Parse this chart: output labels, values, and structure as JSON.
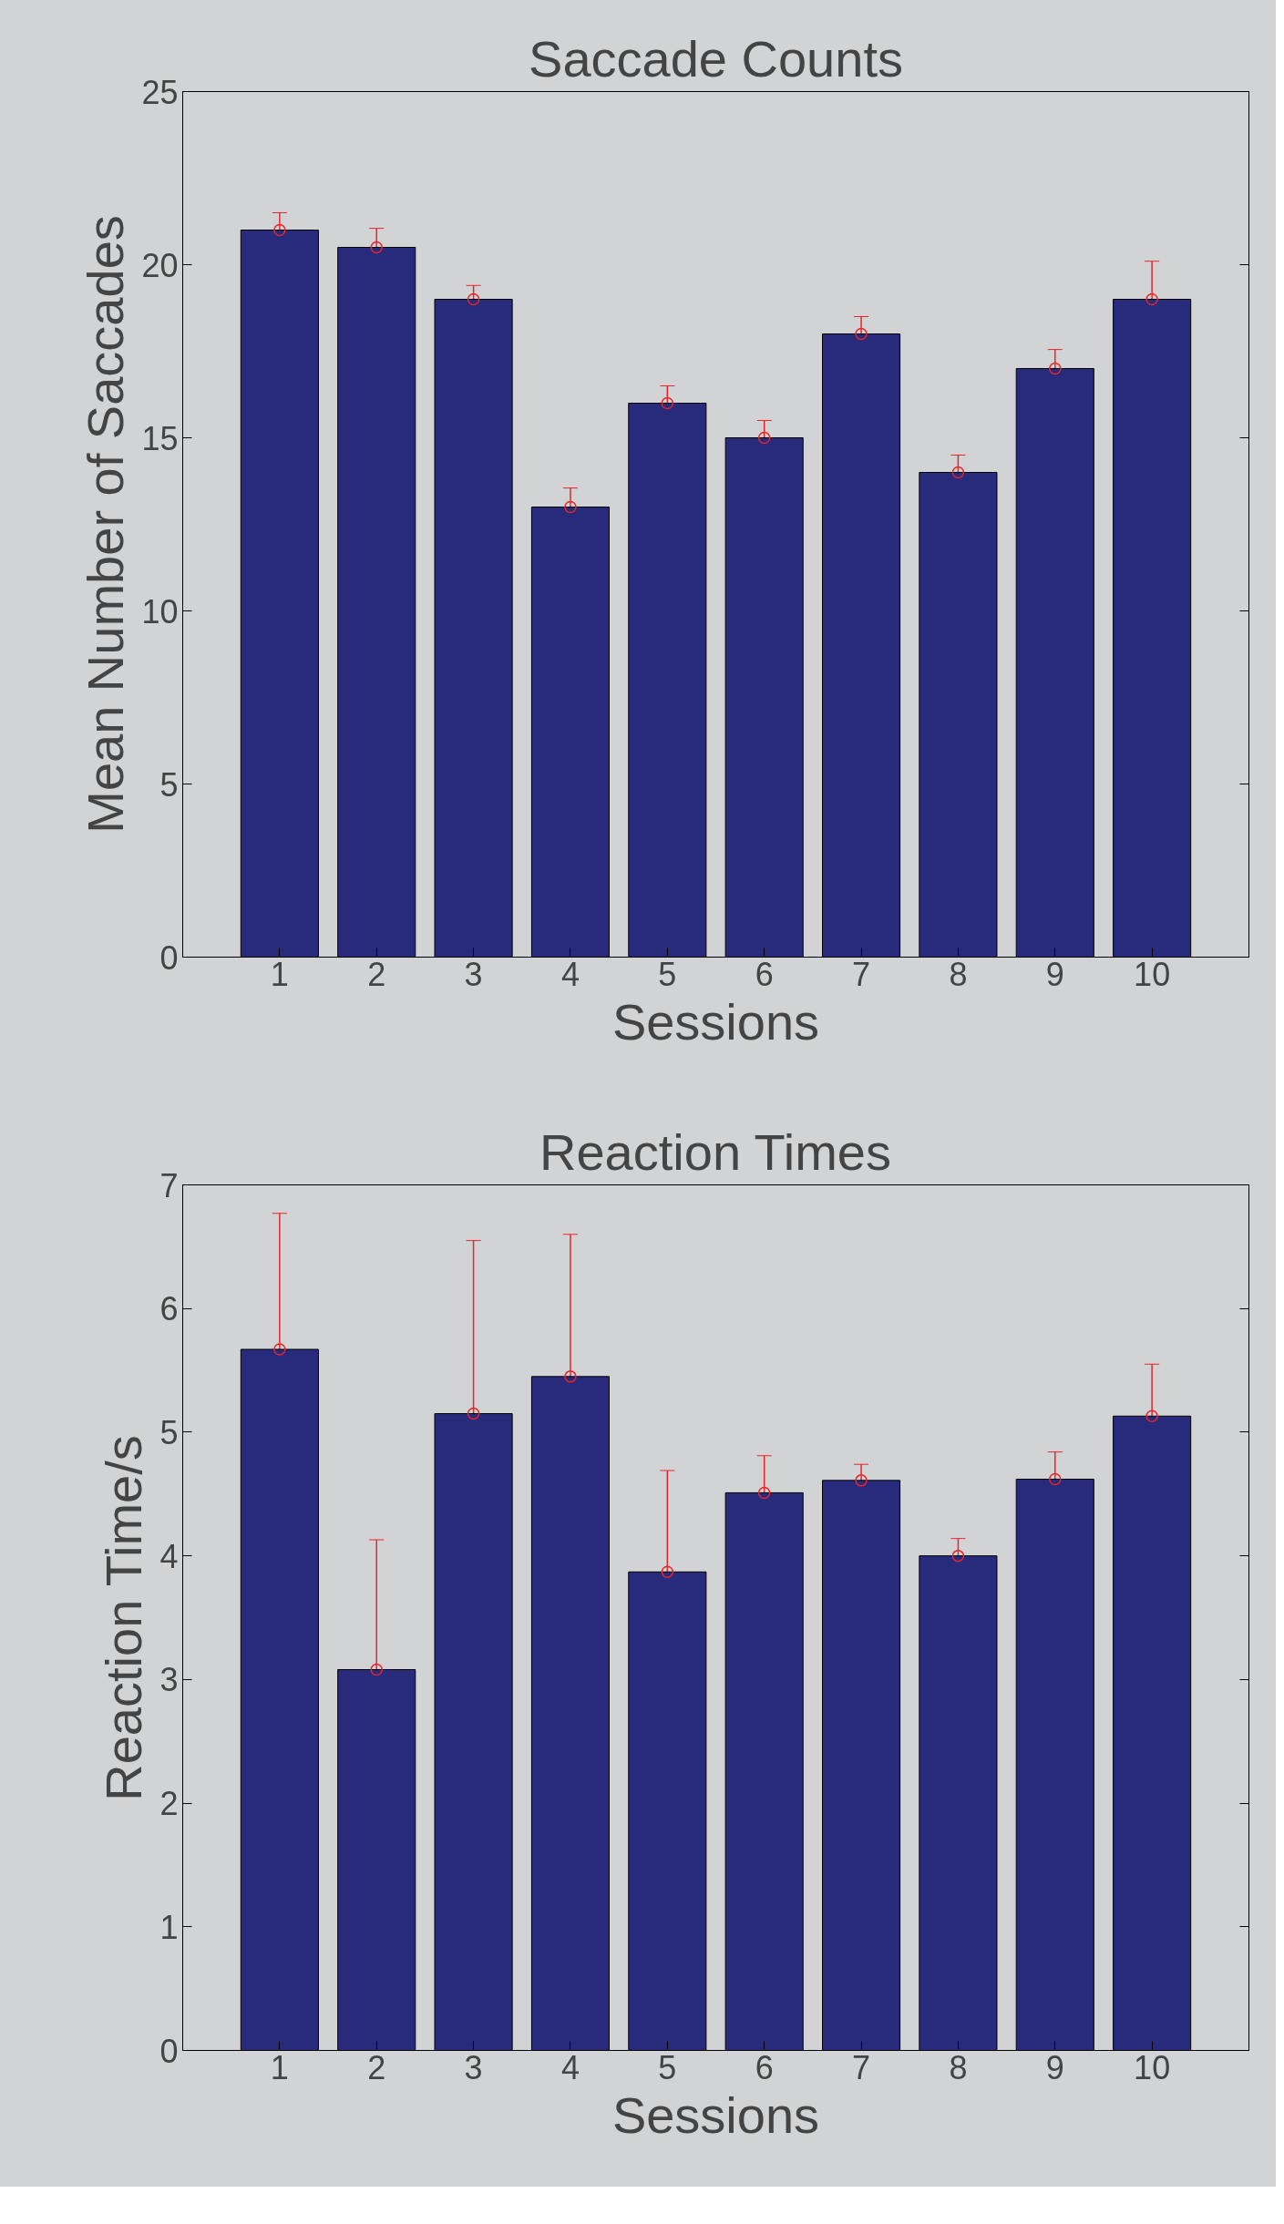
{
  "chart_data": [
    {
      "type": "bar",
      "title": "Saccade Counts",
      "xlabel": "Sessions",
      "ylabel": "Mean Number of Saccades",
      "x": [
        1,
        2,
        3,
        4,
        5,
        6,
        7,
        8,
        9,
        10
      ],
      "xlim": [
        0,
        11
      ],
      "xticks": [
        1,
        2,
        3,
        4,
        5,
        6,
        7,
        8,
        9,
        10
      ],
      "ylim": [
        0,
        25
      ],
      "yticks": [
        0,
        5,
        10,
        15,
        20,
        25
      ],
      "series": [
        {
          "color": "#282a7c",
          "values": [
            21,
            20.5,
            19,
            13,
            16,
            15,
            18,
            14,
            17,
            19
          ]
        },
        {
          "type": "scatter",
          "color": "#e8262a",
          "marker": "circle",
          "values": [
            21,
            20.5,
            19,
            13,
            16,
            15,
            18,
            14,
            17,
            19
          ],
          "errors": [
            0.5,
            0.55,
            0.4,
            0.55,
            0.5,
            0.5,
            0.5,
            0.5,
            0.55,
            1.1
          ]
        }
      ],
      "grid": false
    },
    {
      "type": "bar",
      "title": "Reaction Times",
      "xlabel": "Sessions",
      "ylabel": "Reaction Time/s",
      "x": [
        1,
        2,
        3,
        4,
        5,
        6,
        7,
        8,
        9,
        10
      ],
      "xlim": [
        0,
        11
      ],
      "xticks": [
        1,
        2,
        3,
        4,
        5,
        6,
        7,
        8,
        9,
        10
      ],
      "ylim": [
        0,
        7
      ],
      "yticks": [
        0,
        1,
        2,
        3,
        4,
        5,
        6,
        7
      ],
      "series": [
        {
          "color": "#282a7c",
          "values": [
            5.67,
            3.08,
            5.15,
            5.45,
            3.87,
            4.51,
            4.61,
            4.0,
            4.62,
            5.13
          ]
        },
        {
          "type": "scatter",
          "color": "#e8262a",
          "marker": "circle",
          "values": [
            5.67,
            3.08,
            5.15,
            5.45,
            3.87,
            4.51,
            4.61,
            4.0,
            4.62,
            5.13
          ],
          "errors": [
            1.1,
            1.05,
            1.4,
            1.15,
            0.82,
            0.3,
            0.13,
            0.14,
            0.22,
            0.42
          ]
        }
      ],
      "grid": false
    }
  ]
}
